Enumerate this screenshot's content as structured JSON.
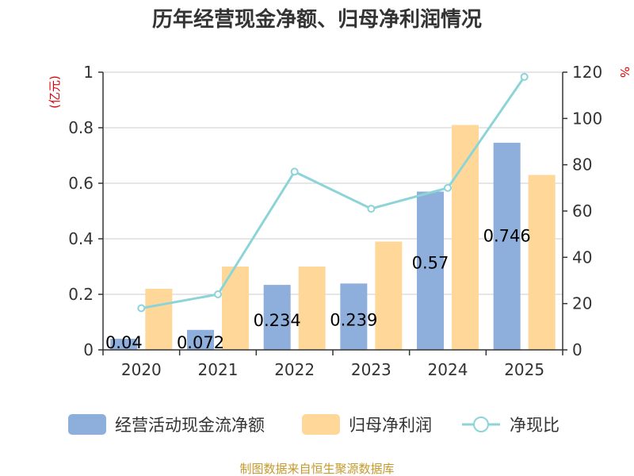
{
  "chart_data": {
    "type": "bar",
    "title": "历年经营现金净额、归母净利润情况",
    "categories": [
      "2020",
      "2021",
      "2022",
      "2023",
      "2024",
      "2025"
    ],
    "series": [
      {
        "name": "经营活动现金流净额",
        "type": "bar",
        "axis": "left",
        "color": "#8eaedc",
        "values": [
          0.04,
          0.072,
          0.234,
          0.239,
          0.57,
          0.746
        ],
        "labels": [
          "0.04",
          "0.072",
          "0.234",
          "0.239",
          "0.57",
          "0.746"
        ]
      },
      {
        "name": "归母净利润",
        "type": "bar",
        "axis": "left",
        "color": "#ffd899",
        "values": [
          0.22,
          0.3,
          0.3,
          0.39,
          0.81,
          0.63
        ]
      },
      {
        "name": "净现比",
        "type": "line",
        "axis": "right",
        "color": "#8dd4d8",
        "values": [
          18,
          24,
          77,
          61,
          70,
          118
        ]
      }
    ],
    "y_left": {
      "label": "(亿元)",
      "min": 0,
      "max": 1,
      "ticks": [
        "0",
        "0.2",
        "0.4",
        "0.6",
        "0.8",
        "1"
      ]
    },
    "y_right": {
      "label": "%",
      "min": 0,
      "max": 120,
      "ticks": [
        "0",
        "20",
        "40",
        "60",
        "80",
        "100",
        "120"
      ]
    },
    "grid": true,
    "legend_position": "bottom",
    "source": "制图数据来自恒生聚源数据库"
  }
}
